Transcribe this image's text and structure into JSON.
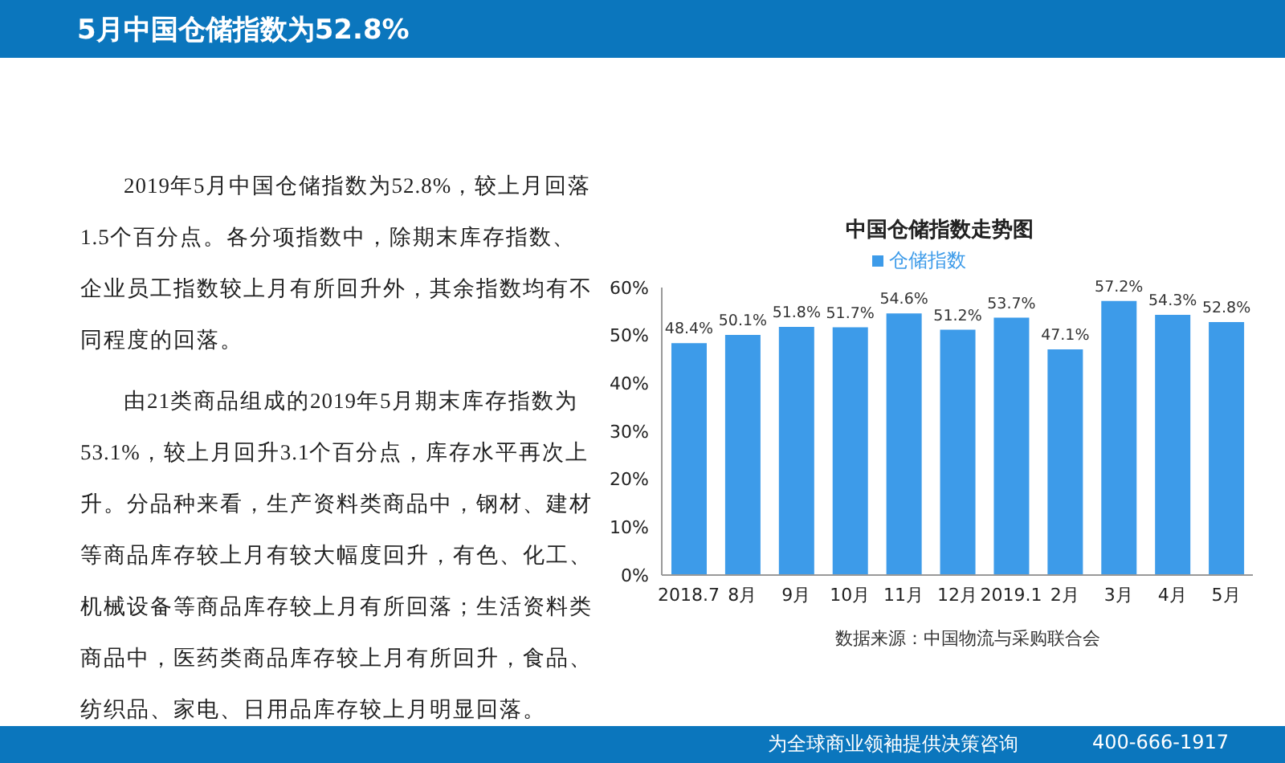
{
  "chart_data": {
    "type": "bar",
    "title": "中国仓储指数走势图",
    "categories": [
      "2018.7",
      "8月",
      "9月",
      "10月",
      "11月",
      "12月",
      "2019.1",
      "2月",
      "3月",
      "4月",
      "5月"
    ],
    "series": [
      {
        "name": "仓储指数",
        "color": "#3d9be9",
        "values": [
          48.4,
          50.1,
          51.8,
          51.7,
          54.6,
          51.2,
          53.7,
          47.1,
          57.2,
          54.3,
          52.8
        ],
        "value_labels": [
          "48.4%",
          "50.1%",
          "51.8%",
          "51.7%",
          "54.6%",
          "51.2%",
          "53.7%",
          "47.1%",
          "57.2%",
          "54.3%",
          "52.8%"
        ]
      }
    ],
    "ylim": [
      0,
      60
    ],
    "yticks": [
      {
        "value": 0,
        "label": "0%"
      },
      {
        "value": 10,
        "label": "10%"
      },
      {
        "value": 20,
        "label": "20%"
      },
      {
        "value": 30,
        "label": "30%"
      },
      {
        "value": 40,
        "label": "40%"
      },
      {
        "value": 50,
        "label": "50%"
      },
      {
        "value": 60,
        "label": "60%"
      }
    ],
    "grid": false,
    "legend": "top",
    "annotations": [
      "5月中国仓储指数为52.8%",
      "2019年5月中国仓储指数为52.8%，较上月回落1.5个百分点。各分项指数中，除期末库存指数、企业员工指数较上月有所回升外，其余指数均有不同程度的回落。",
      "由21类商品组成的2019年5月期末库存指数为53.1%，较上月回升3.1个百分点，库存水平再次上升。分品种来看，生产资料类商品中，钢材、建材等商品库存较上月有较大幅度回升，有色、化工、机械设备等商品库存较上月有所回落；生活资料类商品中，医药类商品库存较上月有所回升，食品、纺织品、家电、日用品库存较上月明显回落。",
      "数据来源：中国物流与采购联合会",
      "为全球商业领袖提供决策咨询",
      "400-666-1917"
    ]
  }
}
